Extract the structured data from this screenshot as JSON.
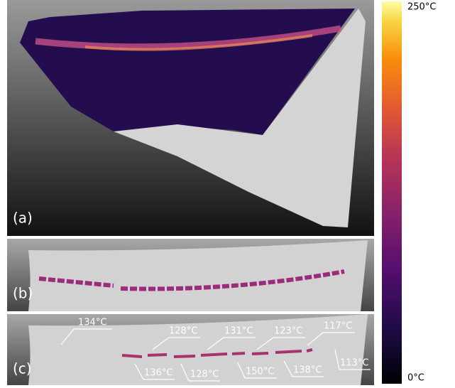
{
  "panels": [
    {
      "label": "(a)"
    },
    {
      "label": "(b)"
    },
    {
      "label": "(c)"
    }
  ],
  "annotations": {
    "above": [
      "134°C",
      "128°C",
      "131°C",
      "123°C",
      "117°C"
    ],
    "below": [
      "136°C",
      "128°C",
      "150°C",
      "138°C",
      "113°C"
    ]
  },
  "colorbar": {
    "max_label": "250°C",
    "min_label": "0°C"
  }
}
